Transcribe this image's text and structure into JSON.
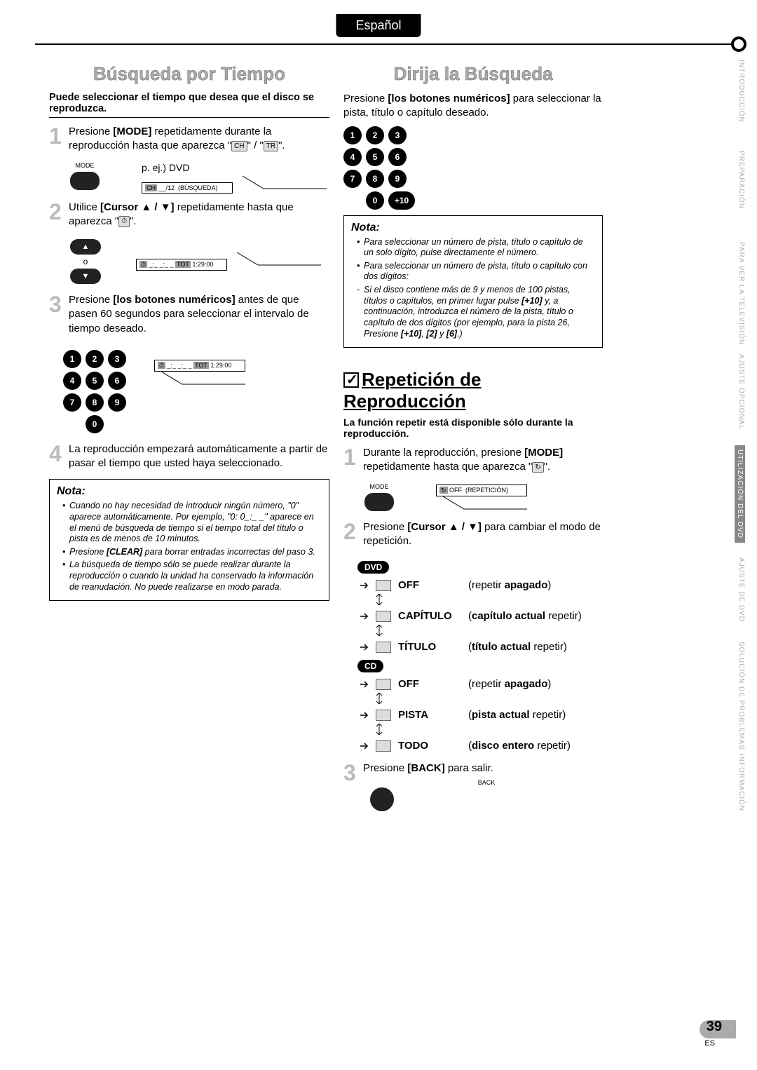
{
  "lang_tab": "Español",
  "left": {
    "title": "Búsqueda por Tiempo",
    "intro": "Puede seleccionar el tiempo que desea que el disco se reproduzca.",
    "step1_a": "Presione ",
    "step1_mode": "[MODE]",
    "step1_b": " repetidamente durante la reproducción hasta que aparezca \"",
    "step1_ch": "CH",
    "step1_c": "\" / \"",
    "step1_tr": "TR",
    "step1_d": "\".",
    "eg_label": "p. ej.) DVD",
    "display1": "CH  __/12  (BÚSQUEDA)",
    "step2_a": "Utilice ",
    "step2_cursor": "[Cursor ▲ / ▼]",
    "step2_b": " repetidamente hasta que aparezca \"",
    "step2_icon": "⏱",
    "step2_c": "\".",
    "display2": "⏱ _:_ _:_ _   TOT 1:29:00",
    "step3_a": "Presione ",
    "step3_btns": "[los botones numéricos]",
    "step3_b": " antes de que pasen 60 segundos para seleccionar el intervalo de tiempo deseado.",
    "step4": "La reproducción empezará automáticamente a partir de pasar el tiempo que usted haya seleccionado.",
    "note_label": "Nota:",
    "notes": [
      "Cuando no hay necesidad de introducir ningún número, \"0\" aparece automáticamente. Por ejemplo, \"0: 0_:_ _\" aparece en el menú de búsqueda de tiempo si el tiempo total del título o pista es de menos de 10 minutos.",
      "Presione [CLEAR] para borrar entradas incorrectas del paso 3.",
      "La búsqueda de tiempo sólo se puede realizar durante la reproducción o cuando la unidad ha conservado la información de reanudación. No puede realizarse en modo parada."
    ],
    "mode_label_sm": "MODE",
    "or_label": "o"
  },
  "right_top": {
    "title": "Dirija la Búsqueda",
    "text_a": "Presione ",
    "text_btns": "[los botones numéricos]",
    "text_b": " para seleccionar la pista, título o capítulo deseado.",
    "plus10": "+10",
    "note_label": "Nota:",
    "notes": [
      "Para seleccionar un número de pista, título o capítulo de un solo dígito, pulse directamente el número.",
      "Para seleccionar un número de pista, título o capítulo con dos dígitos:"
    ],
    "note_sub": "Si el disco contiene más de 9 y menos de 100 pistas, títulos o capítulos, en primer lugar pulse [+10] y, a continuación, introduzca el número de la pista, título o capítulo de dos dígitos (por ejemplo, para la pista 26, Presione [+10], [2] y [6].)"
  },
  "repeat": {
    "title": "Repetición de Reproducción",
    "sub": "La función repetir está disponible sólo durante la reproducción.",
    "step1_a": "Durante la reproducción, presione ",
    "step1_mode": "[MODE]",
    "step1_b": " repetidamente hasta que aparezca \"",
    "step1_icon": "↻",
    "step1_c": "\".",
    "display": "↻  OFF  (REPETICIÓN)",
    "step2_a": "Presione ",
    "step2_cursor": "[Cursor ▲ / ▼]",
    "step2_b": " para cambiar el modo de repetición.",
    "dvd_label": "DVD",
    "cd_label": "CD",
    "rows_dvd": [
      {
        "mode": "OFF",
        "desc_a": "(repetir ",
        "desc_b": "apagado",
        "desc_c": ")"
      },
      {
        "mode": "CAPÍTULO",
        "desc_a": "(",
        "desc_b": "capítulo actual",
        "desc_c": " repetir)"
      },
      {
        "mode": "TÍTULO",
        "desc_a": "(",
        "desc_b": "título actual",
        "desc_c": " repetir)"
      }
    ],
    "rows_cd": [
      {
        "mode": "OFF",
        "desc_a": "(repetir ",
        "desc_b": "apagado",
        "desc_c": ")"
      },
      {
        "mode": "PISTA",
        "desc_a": "(",
        "desc_b": "pista actual",
        "desc_c": " repetir)"
      },
      {
        "mode": "TODO",
        "desc_a": "(",
        "desc_b": "disco entero",
        "desc_c": " repetir)"
      }
    ],
    "step3_a": "Presione ",
    "step3_back": "[BACK]",
    "step3_b": " para salir.",
    "back_label_sm": "BACK",
    "mode_label_sm": "MODE"
  },
  "nav": [
    "INTRODUCCIÓN",
    "PREPARACIÓN",
    "PARA VER LA TELEVISIÓN",
    "AJUSTE OPCIONAL",
    "UTILIZACIÓN DEL DVD",
    "AJUSTE DE DVD",
    "SOLUCIÓN DE PROBLEMAS",
    "INFORMACIÓN"
  ],
  "nav_active_index": 4,
  "page_num": "39",
  "page_sub": "ES",
  "keys": [
    "1",
    "2",
    "3",
    "4",
    "5",
    "6",
    "7",
    "8",
    "9",
    "0"
  ]
}
